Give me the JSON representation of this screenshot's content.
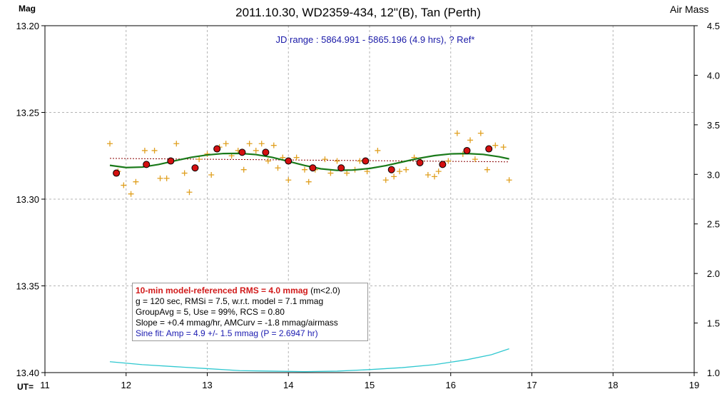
{
  "chart_data": {
    "type": "scatter",
    "title": "2011.10.30, WD2359-434, 12\"(B), Tan (Perth)",
    "ylabel": "Mag",
    "y2label": "Air Mass",
    "xlabel": "UT=",
    "xlim": [
      11,
      19
    ],
    "ylim": [
      13.4,
      13.2
    ],
    "y2lim": [
      1.0,
      4.5
    ],
    "x_ticks": [
      "11",
      "12",
      "13",
      "14",
      "15",
      "16",
      "17",
      "18",
      "19"
    ],
    "y_ticks": [
      "13.20",
      "13.25",
      "13.30",
      "13.35",
      "13.40"
    ],
    "y2_ticks": [
      "1.0",
      "1.5",
      "2.0",
      "2.5",
      "3.0",
      "3.5",
      "4.0",
      "4.5"
    ],
    "grid": true,
    "annotation": "JD range : 5864.991 - 5865.196 (4.9 hrs), ? Ref*",
    "series": [
      {
        "kind": "raw",
        "color": "#e0a020",
        "points": [
          [
            11.8,
            13.268
          ],
          [
            11.9,
            13.284
          ],
          [
            11.97,
            13.292
          ],
          [
            12.06,
            13.297
          ],
          [
            12.12,
            13.29
          ],
          [
            12.23,
            13.272
          ],
          [
            12.35,
            13.272
          ],
          [
            12.42,
            13.288
          ],
          [
            12.5,
            13.288
          ],
          [
            12.62,
            13.268
          ],
          [
            12.72,
            13.285
          ],
          [
            12.78,
            13.296
          ],
          [
            12.9,
            13.277
          ],
          [
            13.0,
            13.274
          ],
          [
            13.05,
            13.286
          ],
          [
            13.15,
            13.27
          ],
          [
            13.23,
            13.268
          ],
          [
            13.3,
            13.275
          ],
          [
            13.38,
            13.272
          ],
          [
            13.45,
            13.283
          ],
          [
            13.52,
            13.268
          ],
          [
            13.6,
            13.272
          ],
          [
            13.67,
            13.268
          ],
          [
            13.75,
            13.278
          ],
          [
            13.82,
            13.269
          ],
          [
            13.87,
            13.282
          ],
          [
            13.93,
            13.276
          ],
          [
            14.0,
            13.289
          ],
          [
            14.1,
            13.276
          ],
          [
            14.2,
            13.283
          ],
          [
            14.25,
            13.29
          ],
          [
            14.33,
            13.283
          ],
          [
            14.45,
            13.277
          ],
          [
            14.52,
            13.285
          ],
          [
            14.6,
            13.278
          ],
          [
            14.72,
            13.285
          ],
          [
            14.82,
            13.283
          ],
          [
            14.88,
            13.278
          ],
          [
            14.97,
            13.284
          ],
          [
            15.1,
            13.272
          ],
          [
            15.2,
            13.289
          ],
          [
            15.3,
            13.287
          ],
          [
            15.37,
            13.284
          ],
          [
            15.45,
            13.283
          ],
          [
            15.55,
            13.276
          ],
          [
            15.63,
            13.278
          ],
          [
            15.72,
            13.286
          ],
          [
            15.8,
            13.287
          ],
          [
            15.85,
            13.284
          ],
          [
            15.97,
            13.278
          ],
          [
            16.08,
            13.262
          ],
          [
            16.15,
            13.274
          ],
          [
            16.24,
            13.266
          ],
          [
            16.3,
            13.277
          ],
          [
            16.37,
            13.262
          ],
          [
            16.45,
            13.283
          ],
          [
            16.55,
            13.269
          ],
          [
            16.65,
            13.27
          ],
          [
            16.72,
            13.289
          ]
        ]
      },
      {
        "kind": "group-average",
        "color": "#d41010",
        "points": [
          [
            11.88,
            13.285
          ],
          [
            12.25,
            13.28
          ],
          [
            12.55,
            13.278
          ],
          [
            12.85,
            13.282
          ],
          [
            13.12,
            13.271
          ],
          [
            13.43,
            13.273
          ],
          [
            13.72,
            13.273
          ],
          [
            14.0,
            13.278
          ],
          [
            14.3,
            13.282
          ],
          [
            14.65,
            13.282
          ],
          [
            14.95,
            13.278
          ],
          [
            15.27,
            13.283
          ],
          [
            15.62,
            13.279
          ],
          [
            15.9,
            13.28
          ],
          [
            16.2,
            13.272
          ],
          [
            16.47,
            13.271
          ]
        ]
      },
      {
        "kind": "sine-fit",
        "color": "#1a7a1a",
        "points": [
          [
            11.8,
            13.2805
          ],
          [
            12.0,
            13.2818
          ],
          [
            12.2,
            13.2815
          ],
          [
            12.4,
            13.28
          ],
          [
            12.6,
            13.2779
          ],
          [
            12.8,
            13.2759
          ],
          [
            13.0,
            13.2745
          ],
          [
            13.2,
            13.2737
          ],
          [
            13.4,
            13.2736
          ],
          [
            13.6,
            13.2743
          ],
          [
            13.8,
            13.2759
          ],
          [
            14.0,
            13.2782
          ],
          [
            14.2,
            13.2806
          ],
          [
            14.4,
            13.2825
          ],
          [
            14.6,
            13.2834
          ],
          [
            14.8,
            13.2832
          ],
          [
            15.0,
            13.2823
          ],
          [
            15.2,
            13.2807
          ],
          [
            15.4,
            13.2786
          ],
          [
            15.6,
            13.2765
          ],
          [
            15.8,
            13.2749
          ],
          [
            16.0,
            13.2739
          ],
          [
            16.2,
            13.2737
          ],
          [
            16.4,
            13.2742
          ],
          [
            16.6,
            13.2756
          ],
          [
            16.72,
            13.2768
          ]
        ]
      },
      {
        "kind": "reference-line",
        "color": "#8a0000",
        "points": [
          [
            11.8,
            13.2765
          ],
          [
            16.72,
            13.2785
          ]
        ]
      },
      {
        "kind": "airmass",
        "axis": "y2",
        "color": "#30c8d0",
        "points": [
          [
            11.8,
            1.11
          ],
          [
            12.2,
            1.08
          ],
          [
            12.6,
            1.06
          ],
          [
            13.0,
            1.04
          ],
          [
            13.4,
            1.02
          ],
          [
            13.8,
            1.015
          ],
          [
            14.2,
            1.01
          ],
          [
            14.6,
            1.015
          ],
          [
            15.0,
            1.03
          ],
          [
            15.4,
            1.05
          ],
          [
            15.8,
            1.08
          ],
          [
            16.2,
            1.13
          ],
          [
            16.5,
            1.18
          ],
          [
            16.72,
            1.24
          ]
        ]
      }
    ]
  },
  "info": {
    "line1_bold": "10-min model-referenced RMS = 4.0 mmag",
    "line1_rest": " (m<2.0)",
    "line2": "g = 120 sec, RMSi = 7.5, w.r.t. model = 7.1 mmag",
    "line3": "GroupAvg  = 5, Use = 99%, RCS = 0.80",
    "line4": "Slope = +0.4 mmag/hr,  AMCurv  = -1.8 mmag/airmass",
    "line5": "Sine fit: Amp = 4.9 +/- 1.5 mmag (P = 2.6947 hr)"
  }
}
